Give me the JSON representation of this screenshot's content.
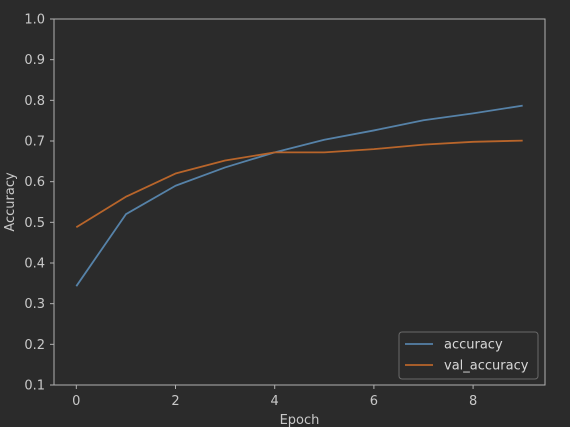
{
  "chart_data": {
    "type": "line",
    "xlabel": "Epoch",
    "ylabel": "Accuracy",
    "x": [
      0,
      1,
      2,
      3,
      4,
      5,
      6,
      7,
      8,
      9
    ],
    "xlim": [
      -0.45,
      9.45
    ],
    "ylim": [
      0.1,
      1.0
    ],
    "xticks": [
      0,
      2,
      4,
      6,
      8
    ],
    "yticks": [
      0.1,
      0.2,
      0.3,
      0.4,
      0.5,
      0.6,
      0.7,
      0.8,
      0.9,
      1.0
    ],
    "grid": false,
    "legend_position": "lower-right",
    "background": "#2b2b2b",
    "axis_color": "#b0b0b0",
    "series": [
      {
        "name": "accuracy",
        "color": "#5682a8",
        "values": [
          0.343,
          0.52,
          0.59,
          0.635,
          0.672,
          0.703,
          0.726,
          0.751,
          0.768,
          0.787
        ]
      },
      {
        "name": "val_accuracy",
        "color": "#b8652b",
        "values": [
          0.488,
          0.563,
          0.62,
          0.652,
          0.672,
          0.672,
          0.68,
          0.691,
          0.698,
          0.701
        ]
      }
    ]
  }
}
